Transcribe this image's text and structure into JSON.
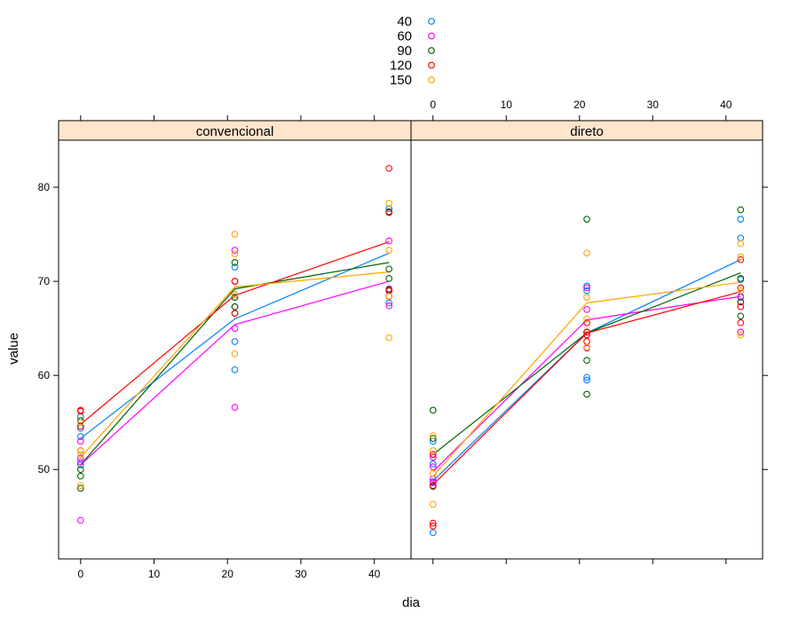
{
  "chart_data": {
    "type": "scatter",
    "xlabel": "dia",
    "ylabel": "value",
    "x_ticks": [
      0,
      10,
      20,
      30,
      40
    ],
    "y_ticks": [
      50,
      60,
      70,
      80
    ],
    "xlim": [
      -3,
      45
    ],
    "ylim": [
      40.5,
      85
    ],
    "grid": false,
    "legend_position": "top-center",
    "strip_color": "#ffe5cc",
    "panels": [
      "convencional",
      "direto"
    ],
    "series": [
      {
        "name": "40",
        "color": "#0080ff"
      },
      {
        "name": "60",
        "color": "#ff00ff"
      },
      {
        "name": "90",
        "color": "#006400"
      },
      {
        "name": "120",
        "color": "#ff0000"
      },
      {
        "name": "150",
        "color": "#ffa500"
      }
    ],
    "points": {
      "convencional": {
        "40": {
          "0": [
            55.6,
            54.4,
            53.5,
            50.5
          ],
          "21": [
            71.5,
            63.6,
            60.6,
            68.3
          ],
          "42": [
            77.7,
            69.0,
            68.4,
            67.7
          ]
        },
        "60": {
          "0": [
            53.0,
            51.2,
            50.8,
            44.6
          ],
          "21": [
            73.3,
            65.0,
            56.6,
            67.3
          ],
          "42": [
            74.3,
            69.0,
            67.4,
            69.2
          ]
        },
        "90": {
          "0": [
            55.2,
            50.0,
            49.3,
            48.0
          ],
          "21": [
            72.0,
            68.3,
            66.6,
            67.3
          ],
          "42": [
            77.4,
            71.3,
            70.3,
            69.1
          ]
        },
        "120": {
          "0": [
            56.3,
            56.2,
            54.6,
            52.0
          ],
          "21": [
            70.0,
            68.6,
            66.6,
            70.0
          ],
          "42": [
            82.0,
            77.3,
            69.0,
            68.4
          ]
        },
        "150": {
          "0": [
            55.0,
            52.0,
            51.6,
            48.3
          ],
          "21": [
            75.0,
            72.9,
            62.3,
            68.6
          ],
          "42": [
            78.3,
            73.3,
            68.4,
            64.0
          ]
        }
      },
      "direto": {
        "40": {
          "0": [
            53.0,
            50.6,
            48.7,
            43.3
          ],
          "21": [
            69.5,
            69.0,
            59.8,
            59.5
          ],
          "42": [
            76.6,
            74.6,
            70.2,
            68.4
          ]
        },
        "60": {
          "0": [
            51.3,
            50.3,
            49.0,
            48.6
          ],
          "21": [
            69.3,
            67.0,
            64.3,
            62.9
          ],
          "42": [
            68.3,
            67.3,
            64.6,
            67.8
          ]
        },
        "90": {
          "0": [
            56.3,
            53.3,
            48.2,
            51.6
          ],
          "21": [
            76.6,
            64.6,
            61.6,
            58.0
          ],
          "42": [
            77.6,
            70.3,
            67.8,
            66.3
          ]
        },
        "120": {
          "0": [
            51.6,
            48.3,
            44.3,
            44.0
          ],
          "21": [
            64.6,
            63.6,
            65.6,
            64.3
          ],
          "42": [
            72.3,
            69.3,
            67.3,
            65.6
          ]
        },
        "150": {
          "0": [
            53.6,
            52.0,
            49.6,
            46.3
          ],
          "21": [
            73.0,
            68.3,
            66.0,
            63.0
          ],
          "42": [
            74.0,
            72.6,
            69.0,
            64.3
          ]
        }
      }
    },
    "lines": {
      "convencional": {
        "40": [
          53.3,
          66.0,
          73.0
        ],
        "60": [
          50.5,
          65.4,
          70.0
        ],
        "90": [
          50.5,
          69.2,
          72.0
        ],
        "120": [
          54.8,
          68.5,
          74.2
        ],
        "150": [
          51.3,
          69.4,
          71.0
        ]
      },
      "direto": {
        "40": [
          48.8,
          64.5,
          72.3
        ],
        "60": [
          49.8,
          65.9,
          68.4
        ],
        "90": [
          51.6,
          64.5,
          70.9
        ],
        "120": [
          48.4,
          64.5,
          68.9
        ],
        "150": [
          49.3,
          67.7,
          69.9
        ]
      }
    },
    "x_points": [
      0,
      21,
      42
    ]
  }
}
